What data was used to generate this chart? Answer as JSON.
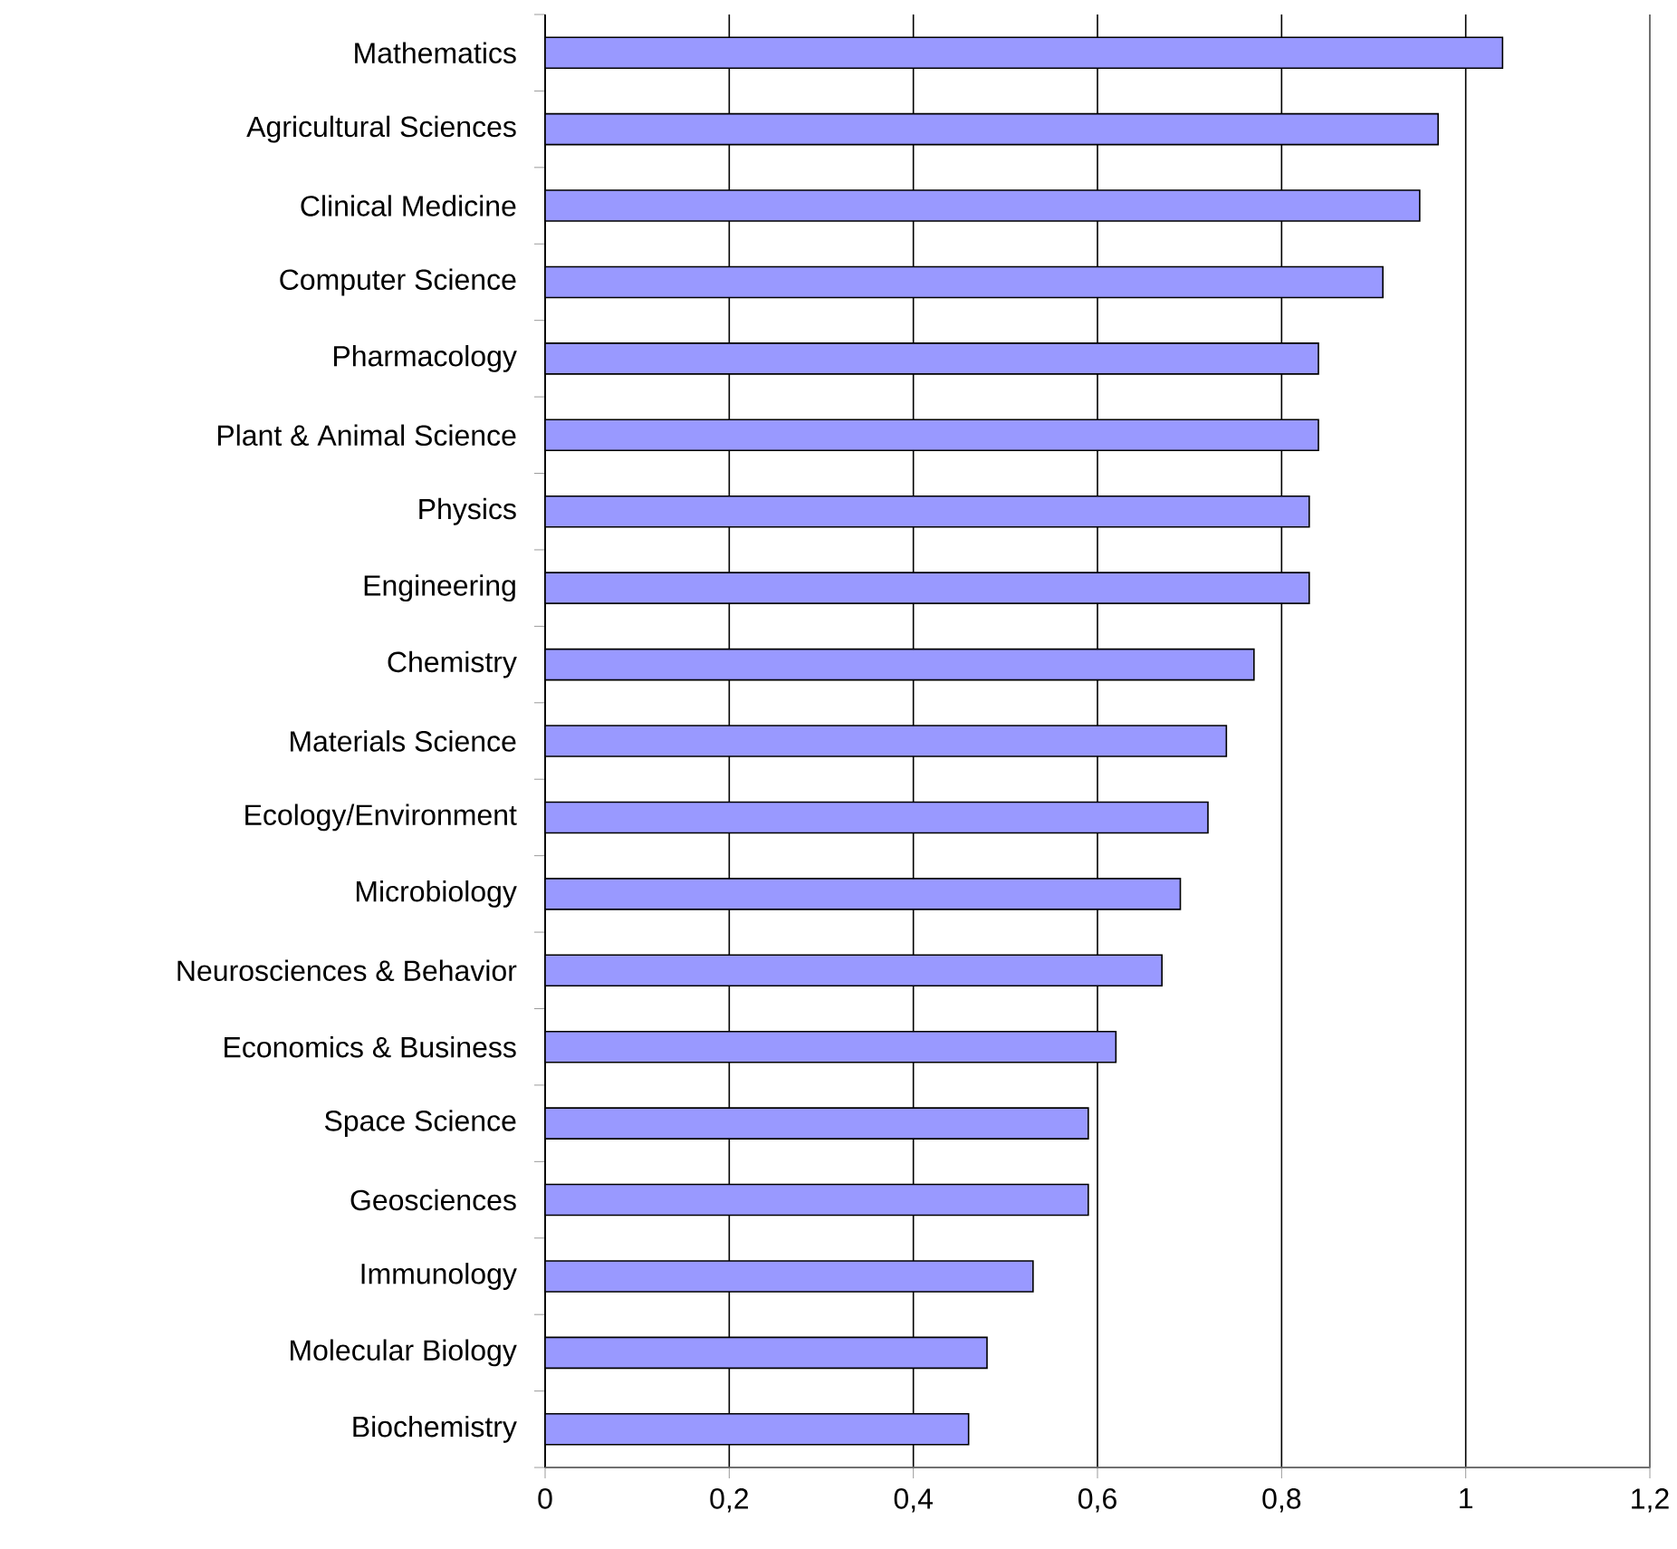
{
  "chart_data": {
    "type": "bar",
    "orientation": "horizontal",
    "categories": [
      "Mathematics",
      "Agricultural Sciences",
      "Clinical Medicine",
      "Computer Science",
      "Pharmacology",
      "Plant & Animal Science",
      "Physics",
      "Engineering",
      "Chemistry",
      "Materials Science",
      "Ecology/Environment",
      "Microbiology",
      "Neurosciences & Behavior",
      "Economics & Business",
      "Space Science",
      "Geosciences",
      "Immunology",
      "Molecular Biology",
      "Biochemistry"
    ],
    "values": [
      1.04,
      0.97,
      0.95,
      0.91,
      0.84,
      0.84,
      0.83,
      0.83,
      0.77,
      0.74,
      0.72,
      0.69,
      0.67,
      0.62,
      0.59,
      0.59,
      0.53,
      0.48,
      0.46
    ],
    "color": "#9999ff",
    "xlim": [
      0,
      1.2
    ],
    "xticks": [
      0,
      {
        "value": 0.2,
        "label": "0,2"
      },
      {
        "value": 0.4,
        "label": "0,4"
      },
      {
        "value": 0.6,
        "label": "0,6"
      },
      {
        "value": 0.8,
        "label": "0,8"
      },
      1,
      {
        "value": 1.2,
        "label": "1,2"
      }
    ],
    "grid": "x"
  }
}
